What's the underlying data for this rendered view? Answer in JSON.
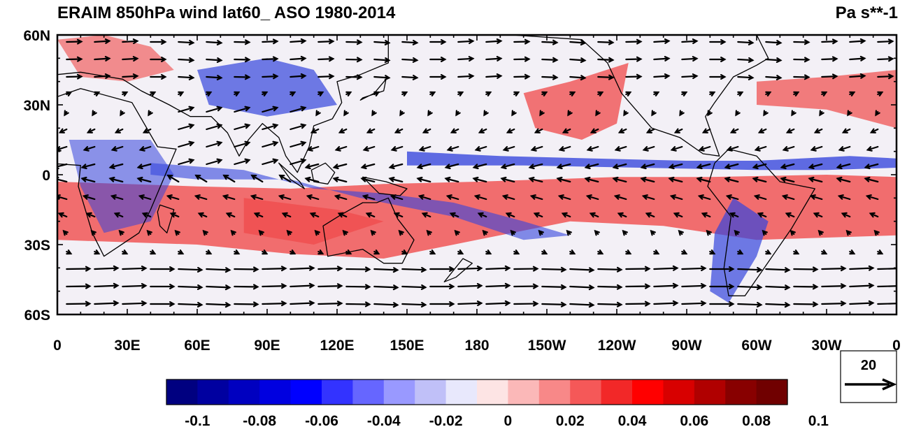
{
  "title": "ERAIM 850hPa wind lat60_ ASO 1980-2014",
  "units": "Pa s**-1",
  "lat_ticks": [
    "60N",
    "30N",
    "0",
    "30S",
    "60S"
  ],
  "lon_ticks": [
    "0",
    "30E",
    "60E",
    "90E",
    "120E",
    "150E",
    "180",
    "150W",
    "120W",
    "90W",
    "60W",
    "30W",
    "0"
  ],
  "colorbar": {
    "labels": [
      "-0.1",
      "-0.08",
      "-0.06",
      "-0.04",
      "-0.02",
      "0",
      "0.02",
      "0.04",
      "0.06",
      "0.08",
      "0.1"
    ],
    "colors": [
      "#000080",
      "#0000a0",
      "#0000c0",
      "#0000e0",
      "#0000ff",
      "#3333ff",
      "#6666ff",
      "#9999ff",
      "#c0c0f8",
      "#e8e8fc",
      "#fde4e4",
      "#fbb8b8",
      "#f88888",
      "#f55858",
      "#f22828",
      "#ff0000",
      "#d80000",
      "#b00000",
      "#880000",
      "#700000"
    ]
  },
  "reference_vector": {
    "label": "20"
  },
  "map": {
    "lon_range": [
      0,
      360
    ],
    "lat_range": [
      -60,
      60
    ],
    "field_colors": {
      "sinking": "#f04848",
      "rising": "#3344dd",
      "neutral": "#f3f0f6"
    }
  }
}
